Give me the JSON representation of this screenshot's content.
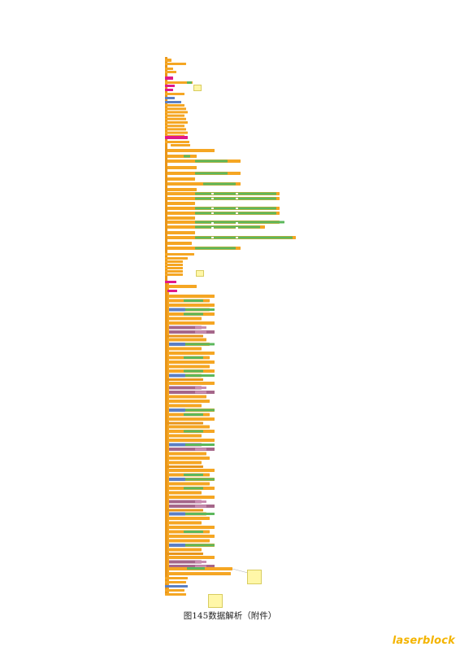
{
  "caption": "图145数据解析（附件）",
  "logo": "laserblock",
  "colors": {
    "control": "#f5a623",
    "control_dark": "#e8951a",
    "math": "#5cb85c",
    "text": "#e8951a",
    "variable": "#a5668a",
    "list": "#5b7fc4",
    "event": "#e0198a",
    "note": "#fff7a8"
  }
}
